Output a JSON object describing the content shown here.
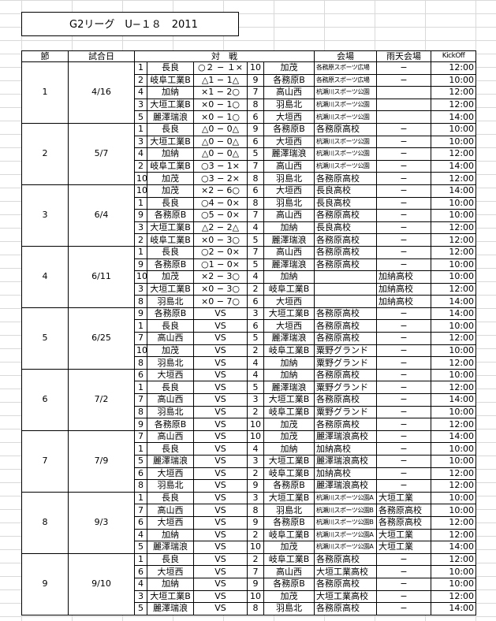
{
  "title": "G2リーグ　U−１８　2011",
  "header": [
    "節",
    "試合日",
    "対　戦",
    "会場",
    "雨天会場",
    "KickOff"
  ],
  "rounds": [
    {
      "round": "1",
      "date": "4/16",
      "matches": [
        {
          "home_no": "1",
          "home": "長良",
          "score": "○２ − １×",
          "away_no": "10",
          "away": "加茂",
          "venue": "各務原スポーツ広場",
          "rain": "−",
          "kickoff": "12:00"
        },
        {
          "home_no": "2",
          "home": "岐阜工業B",
          "score": "△1 − 1△",
          "away_no": "9",
          "away": "各務原B",
          "venue": "各務原スポーツ広場",
          "rain": "−",
          "kickoff": "10:00"
        },
        {
          "home_no": "4",
          "home": "加納",
          "score": "×1 − 2○",
          "away_no": "7",
          "away": "高山西",
          "venue": "杭瀬川スポーツ公園",
          "kickoff": "12:00"
        },
        {
          "home_no": "3",
          "home": "大垣工業B",
          "score": "×0 − 1○",
          "away_no": "8",
          "away": "羽島北",
          "venue": "杭瀬川スポーツ公園",
          "kickoff": "12:00"
        },
        {
          "home_no": "5",
          "home": "麗澤瑞浪",
          "score": "×0 − 1○",
          "away_no": "6",
          "away": "大垣西",
          "venue": "杭瀬川スポーツ公園",
          "kickoff": "14:00"
        }
      ]
    },
    {
      "round": "2",
      "date": "5/7",
      "matches": [
        {
          "home_no": "1",
          "home": "長良",
          "score": "△0 − 0△",
          "away_no": "9",
          "away": "各務原B",
          "venue": "各務原高校",
          "rain": "−",
          "kickoff": "10:00"
        },
        {
          "home_no": "3",
          "home": "大垣工業B",
          "score": "△0 − 0△",
          "away_no": "6",
          "away": "大垣西",
          "venue": "杭瀬川スポーツ公園",
          "rain": "−",
          "kickoff": "10:00"
        },
        {
          "home_no": "4",
          "home": "加納",
          "score": "△0 − 0△",
          "away_no": "5",
          "away": "麗澤瑞浪",
          "venue": "杭瀬川スポーツ公園",
          "rain": "−",
          "kickoff": "12:00"
        },
        {
          "home_no": "2",
          "home": "岐阜工業B",
          "score": "○3 − 1×",
          "away_no": "7",
          "away": "高山西",
          "venue": "杭瀬川スポーツ公園",
          "rain": "−",
          "kickoff": "14:00"
        },
        {
          "home_no": "10",
          "home": "加茂",
          "score": "○3 − 2×",
          "away_no": "8",
          "away": "羽島北",
          "venue": "各務原高校",
          "rain": "−",
          "kickoff": "12:00"
        }
      ]
    },
    {
      "round": "3",
      "date": "6/4",
      "matches": [
        {
          "home_no": "10",
          "home": "加茂",
          "score": "×2 − 6○",
          "away_no": "6",
          "away": "大垣西",
          "venue": "長良高校",
          "rain": "−",
          "kickoff": "14:00"
        },
        {
          "home_no": "1",
          "home": "長良",
          "score": "○4 − 0×",
          "away_no": "8",
          "away": "羽島北",
          "venue": "長良高校",
          "rain": "−",
          "kickoff": "10:00"
        },
        {
          "home_no": "9",
          "home": "各務原B",
          "score": "○5 − 0×",
          "away_no": "7",
          "away": "高山西",
          "venue": "各務原高校",
          "rain": "−",
          "kickoff": "10:00"
        },
        {
          "home_no": "3",
          "home": "大垣工業B",
          "score": "△2 − 2△",
          "away_no": "4",
          "away": "加納",
          "venue": "長良高校",
          "rain": "−",
          "kickoff": "12:00"
        },
        {
          "home_no": "2",
          "home": "岐阜工業B",
          "score": "×0 − 3○",
          "away_no": "5",
          "away": "麗澤瑞浪",
          "venue": "各務原高校",
          "rain": "−",
          "kickoff": "12:00"
        }
      ]
    },
    {
      "round": "4",
      "date": "6/11",
      "matches": [
        {
          "home_no": "1",
          "home": "長良",
          "score": "○2 − 0×",
          "away_no": "7",
          "away": "高山西",
          "venue": "各務原高校",
          "rain": "−",
          "kickoff": "12:00"
        },
        {
          "home_no": "9",
          "home": "各務原B",
          "score": "○1 − 0×",
          "away_no": "5",
          "away": "麗澤瑞浪",
          "venue": "各務原高校",
          "rain": "−",
          "kickoff": "10:00"
        },
        {
          "home_no": "10",
          "home": "加茂",
          "score": "×2 − 3○",
          "away_no": "4",
          "away": "加納",
          "rain": "加納高校",
          "kickoff": "10:00"
        },
        {
          "home_no": "3",
          "home": "大垣工業B",
          "score": "×0 − 3○",
          "away_no": "2",
          "away": "岐阜工業B",
          "rain": "加納高校",
          "kickoff": "12:00"
        },
        {
          "home_no": "8",
          "home": "羽島北",
          "score": "×0 − 7○",
          "away_no": "6",
          "away": "大垣西",
          "rain": "加納高校",
          "kickoff": "14:00"
        }
      ]
    },
    {
      "round": "5",
      "date": "6/25",
      "matches": [
        {
          "home_no": "9",
          "home": "各務原B",
          "score": "VS",
          "away_no": "3",
          "away": "大垣工業B",
          "venue": "各務原高校",
          "rain": "−",
          "kickoff": "14:00"
        },
        {
          "home_no": "1",
          "home": "長良",
          "score": "VS",
          "away_no": "6",
          "away": "大垣西",
          "venue": "各務原高校",
          "rain": "−",
          "kickoff": "10:00"
        },
        {
          "home_no": "7",
          "home": "高山西",
          "score": "VS",
          "away_no": "5",
          "away": "麗澤瑞浪",
          "venue": "各務原高校",
          "rain": "−",
          "kickoff": "12:00"
        },
        {
          "home_no": "10",
          "home": "加茂",
          "score": "VS",
          "away_no": "2",
          "away": "岐阜工業B",
          "venue": "粟野グランド",
          "rain": "−",
          "kickoff": "10:00"
        },
        {
          "home_no": "8",
          "home": "羽島北",
          "score": "VS",
          "away_no": "4",
          "away": "加納",
          "venue": "粟野グランド",
          "rain": "−",
          "kickoff": "12:00"
        }
      ]
    },
    {
      "round": "6",
      "date": "7/2",
      "matches": [
        {
          "home_no": "6",
          "home": "大垣西",
          "score": "VS",
          "away_no": "4",
          "away": "加納",
          "venue": "各務原高校",
          "rain": "−",
          "kickoff": "10:00"
        },
        {
          "home_no": "1",
          "home": "長良",
          "score": "VS",
          "away_no": "5",
          "away": "麗澤瑞浪",
          "venue": "粟野グランド",
          "rain": "−",
          "kickoff": "12:00"
        },
        {
          "home_no": "7",
          "home": "高山西",
          "score": "VS",
          "away_no": "3",
          "away": "大垣工業B",
          "venue": "各務原高校",
          "rain": "−",
          "kickoff": "14:00"
        },
        {
          "home_no": "8",
          "home": "羽島北",
          "score": "VS",
          "away_no": "2",
          "away": "岐阜工業B",
          "venue": "粟野グランド",
          "rain": "−",
          "kickoff": "10:00"
        },
        {
          "home_no": "9",
          "home": "各務原B",
          "score": "VS",
          "away_no": "10",
          "away": "加茂",
          "venue": "各務原高校",
          "rain": "−",
          "kickoff": "12:00"
        }
      ]
    },
    {
      "round": "7",
      "date": "7/9",
      "matches": [
        {
          "home_no": "7",
          "home": "高山西",
          "score": "VS",
          "away_no": "10",
          "away": "加茂",
          "venue": "麗澤瑞浪高校",
          "rain": "−",
          "kickoff": "14:00"
        },
        {
          "home_no": "1",
          "home": "長良",
          "score": "VS",
          "away_no": "4",
          "away": "加納",
          "venue": "加納高校",
          "rain": "−",
          "kickoff": "10:00"
        },
        {
          "home_no": "5",
          "home": "麗澤瑞浪",
          "score": "VS",
          "away_no": "3",
          "away": "大垣工業B",
          "venue": "麗澤瑞浪高校",
          "rain": "−",
          "kickoff": "10:00"
        },
        {
          "home_no": "6",
          "home": "大垣西",
          "score": "VS",
          "away_no": "2",
          "away": "岐阜工業B",
          "venue": "加納高校",
          "rain": "−",
          "kickoff": "12:00"
        },
        {
          "home_no": "8",
          "home": "羽島北",
          "score": "VS",
          "away_no": "9",
          "away": "各務原B",
          "venue": "麗澤瑞浪高校",
          "rain": "−",
          "kickoff": "12:00"
        }
      ]
    },
    {
      "round": "8",
      "date": "9/3",
      "matches": [
        {
          "home_no": "1",
          "home": "長良",
          "score": "VS",
          "away_no": "3",
          "away": "大垣工業B",
          "venue": "杭瀬川スポーツ公園A",
          "rain": "大垣工業",
          "kickoff": "10:00"
        },
        {
          "home_no": "7",
          "home": "高山西",
          "score": "VS",
          "away_no": "8",
          "away": "羽島北",
          "venue": "杭瀬川スポーツ公園B",
          "rain": "各務原高校",
          "kickoff": "10:00"
        },
        {
          "home_no": "6",
          "home": "大垣西",
          "score": "VS",
          "away_no": "9",
          "away": "各務原B",
          "venue": "杭瀬川スポーツ公園B",
          "rain": "各務原高校",
          "kickoff": "12:00"
        },
        {
          "home_no": "4",
          "home": "加納",
          "score": "VS",
          "away_no": "2",
          "away": "岐阜工業B",
          "venue": "杭瀬川スポーツ公園A",
          "rain": "大垣工業",
          "kickoff": "12:00"
        },
        {
          "home_no": "5",
          "home": "麗澤瑞浪",
          "score": "VS",
          "away_no": "10",
          "away": "加茂",
          "venue": "杭瀬川スポーツ公園A",
          "rain": "大垣工業",
          "kickoff": "14:00"
        }
      ]
    },
    {
      "round": "9",
      "date": "9/10",
      "matches": [
        {
          "home_no": "1",
          "home": "長良",
          "score": "VS",
          "away_no": "2",
          "away": "岐阜工業B",
          "venue": "各務原高校",
          "rain": "−",
          "kickoff": "12:00"
        },
        {
          "home_no": "6",
          "home": "大垣西",
          "score": "VS",
          "away_no": "7",
          "away": "高山西",
          "venue": "大垣工業高校",
          "rain": "−",
          "kickoff": "10:00"
        },
        {
          "home_no": "4",
          "home": "加納",
          "score": "VS",
          "away_no": "9",
          "away": "各務原B",
          "venue": "各務原高校",
          "rain": "−",
          "kickoff": "10:00"
        },
        {
          "home_no": "3",
          "home": "大垣工業B",
          "score": "VS",
          "away_no": "10",
          "away": "加茂",
          "venue": "大垣工業高校",
          "rain": "−",
          "kickoff": "12:00"
        },
        {
          "home_no": "5",
          "home": "麗澤瑞浪",
          "score": "VS",
          "away_no": "8",
          "away": "羽島北",
          "venue": "各務原高校",
          "rain": "−",
          "kickoff": "14:00"
        }
      ]
    }
  ]
}
